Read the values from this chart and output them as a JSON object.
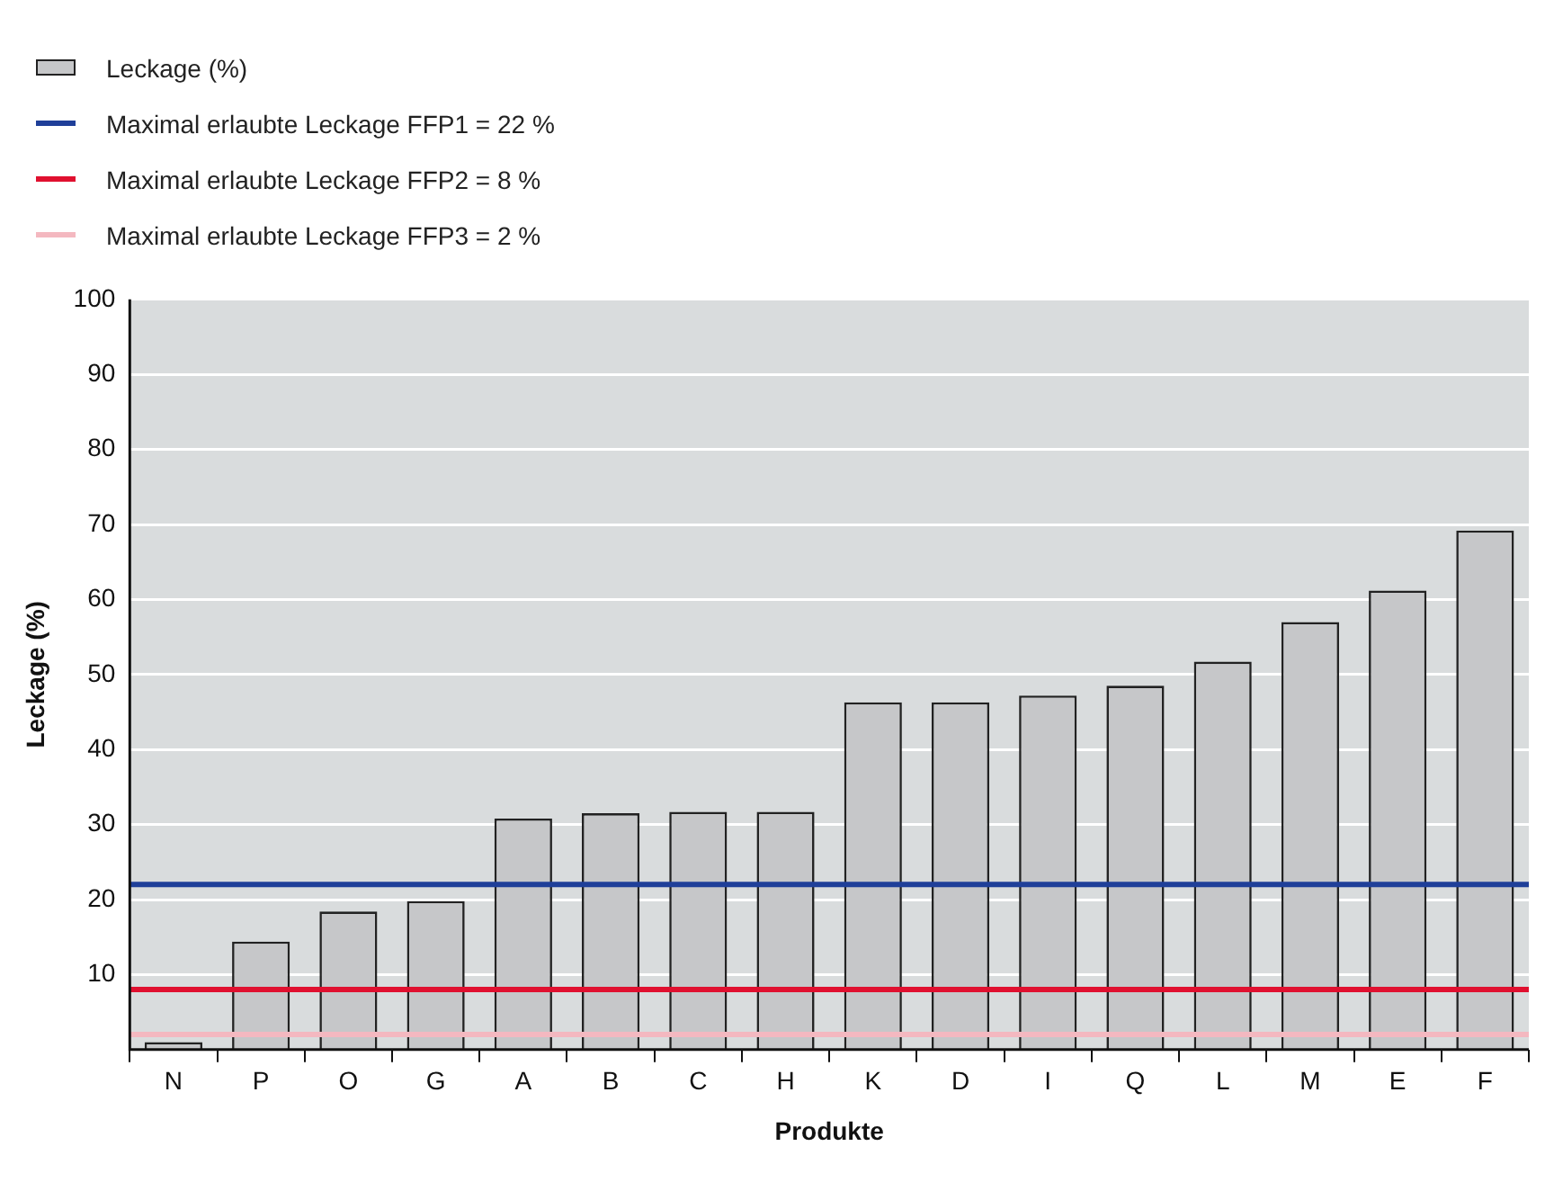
{
  "chart_data": {
    "type": "bar",
    "xlabel": "Produkte",
    "ylabel": "Leckage (%)",
    "categories": [
      "N",
      "P",
      "O",
      "G",
      "A",
      "B",
      "C",
      "H",
      "K",
      "D",
      "I",
      "Q",
      "L",
      "M",
      "E",
      "F"
    ],
    "series": [
      {
        "name": "Leckage (%)",
        "color": "#c6c7c9",
        "values": [
          1.0,
          14.4,
          18.4,
          19.8,
          30.8,
          31.5,
          31.7,
          31.7,
          46.3,
          46.3,
          47.2,
          48.5,
          51.7,
          57.0,
          61.2,
          69.2
        ]
      }
    ],
    "ylim": [
      0,
      100
    ],
    "yticks": [
      10,
      20,
      30,
      40,
      50,
      60,
      70,
      80,
      90,
      100
    ],
    "grid": "y",
    "legend": "top left",
    "ref_lines": [
      {
        "axis": "y",
        "value": 22,
        "label": "Maximal erlaubte Leckage FFP1 = 22 %",
        "color": "#1f3f99"
      },
      {
        "axis": "y",
        "value": 8,
        "label": "Maximal erlaubte Leckage FFP2 = 8 %",
        "color": "#e0102f"
      },
      {
        "axis": "y",
        "value": 2,
        "label": "Maximal erlaubte Leckage FFP3 = 2 %",
        "color": "#f4b8c0"
      }
    ]
  }
}
